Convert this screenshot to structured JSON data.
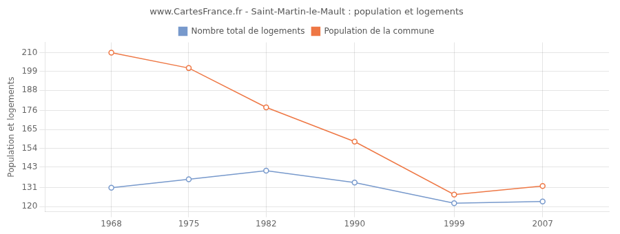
{
  "chart_data": {
    "type": "line",
    "title": "www.CartesFrance.fr - Saint-Martin-le-Mault : population et logements",
    "ylabel": "Population et logements",
    "x": [
      1968,
      1975,
      1982,
      1990,
      1999,
      2007
    ],
    "series": [
      {
        "name": "Nombre total de logements",
        "color": "#7799cc",
        "values": [
          131,
          136,
          141,
          134,
          122,
          123
        ],
        "marker": "circle",
        "line_style": "solid"
      },
      {
        "name": "Population de la commune",
        "color": "#ee7744",
        "values": [
          210,
          201,
          178,
          158,
          127,
          132
        ],
        "marker": "circle",
        "line_style": "solid"
      }
    ],
    "xlim": [
      1962,
      2013
    ],
    "ylim": [
      117,
      216
    ],
    "xticks": [
      1968,
      1975,
      1982,
      1990,
      1999,
      2007
    ],
    "yticks": [
      120,
      131,
      143,
      154,
      165,
      176,
      188,
      199,
      210
    ],
    "grid": true,
    "legend": "top"
  }
}
